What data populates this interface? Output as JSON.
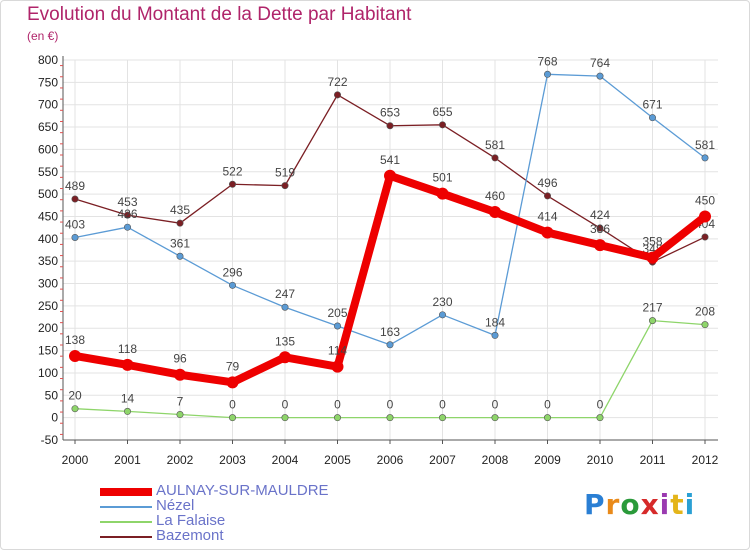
{
  "title": "Evolution du Montant de la Dette par Habitant",
  "unit": "(en €)",
  "logo": {
    "text": "Proxiti",
    "letter_colors": [
      "#2a7fd4",
      "#e98a1a",
      "#2a9a3a",
      "#d62a2a",
      "#9a3ab0",
      "#e4b51a",
      "#2aa0d4"
    ]
  },
  "chart_data": {
    "type": "line",
    "x": [
      "2000",
      "2001",
      "2002",
      "2003",
      "2004",
      "2005",
      "2006",
      "2007",
      "2008",
      "2009",
      "2010",
      "2011",
      "2012"
    ],
    "ylim": [
      -50,
      800
    ],
    "yticks": [
      -50,
      0,
      50,
      100,
      150,
      200,
      250,
      300,
      350,
      400,
      450,
      500,
      550,
      600,
      650,
      700,
      750,
      800
    ],
    "grid": true,
    "legend_position": "bottom-left",
    "series": [
      {
        "name": "Bazemont",
        "color": "#7b1f24",
        "values": [
          489,
          453,
          435,
          522,
          519,
          722,
          653,
          655,
          581,
          496,
          424,
          348,
          404
        ],
        "labels": [
          "489",
          "453",
          "435",
          "522",
          "519",
          "722",
          "653",
          "655",
          "581",
          "496",
          "424",
          "348",
          "404"
        ]
      },
      {
        "name": "Nézel",
        "color": "#5b9bd5",
        "values": [
          403,
          426,
          361,
          296,
          247,
          205,
          163,
          230,
          184,
          768,
          764,
          671,
          581
        ],
        "labels": [
          "403",
          "426",
          "361",
          "296",
          "247",
          "205",
          "163",
          "230",
          "184",
          "768",
          "764",
          "671",
          "581"
        ]
      },
      {
        "name": "La Falaise",
        "color": "#8ed56a",
        "values": [
          20,
          14,
          7,
          0,
          0,
          0,
          0,
          0,
          0,
          0,
          0,
          217,
          208
        ],
        "labels": [
          "20",
          "14",
          "7",
          "0",
          "0",
          "0",
          "0",
          "0",
          "0",
          "0",
          "0",
          "217",
          "208"
        ]
      },
      {
        "name": "AULNAY-SUR-MAULDRE",
        "color": "#ee0000",
        "values": [
          138,
          118,
          96,
          79,
          135,
          114,
          541,
          501,
          460,
          414,
          386,
          358,
          450
        ],
        "labels": [
          "138",
          "118",
          "96",
          "79",
          "135",
          "114",
          "541",
          "501",
          "460",
          "414",
          "386",
          "358",
          "450"
        ]
      }
    ]
  },
  "legend": [
    {
      "name": "AULNAY-SUR-MAULDRE",
      "color": "#ee0000"
    },
    {
      "name": "Nézel",
      "color": "#5b9bd5"
    },
    {
      "name": "La Falaise",
      "color": "#8ed56a"
    },
    {
      "name": "Bazemont",
      "color": "#7b1f24"
    }
  ]
}
